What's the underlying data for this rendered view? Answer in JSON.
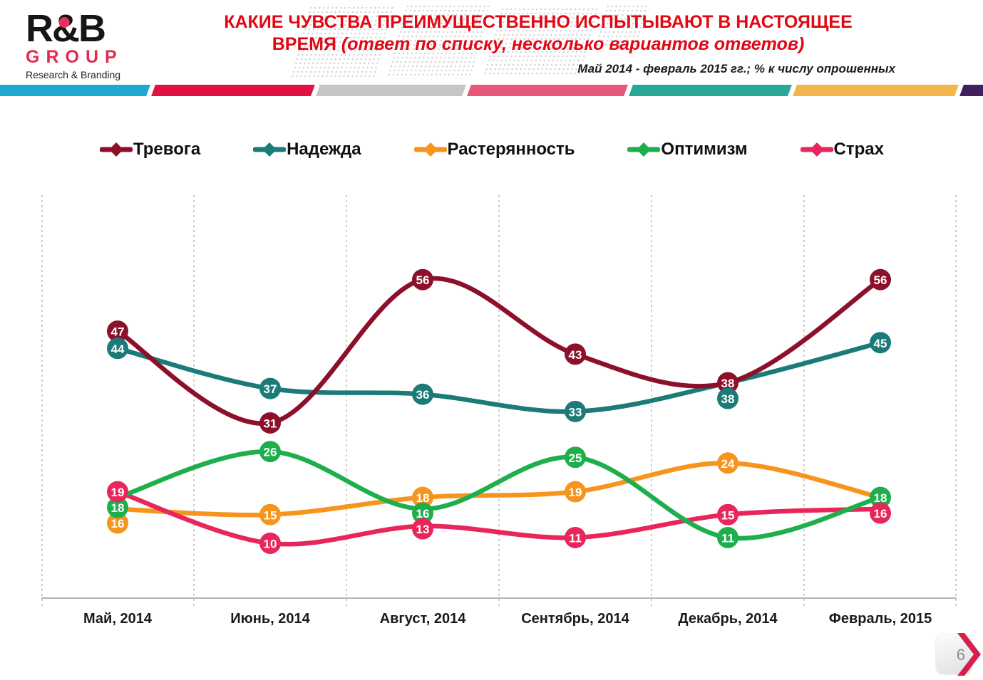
{
  "header": {
    "logo": {
      "brand": "R&B",
      "group": "GROUP",
      "tagline": "Research & Branding"
    },
    "title_line1": "КАКИЕ ЧУВСТВА ПРЕИМУЩЕСТВЕННО ИСПЫТЫВАЮТ В НАСТОЯЩЕЕ",
    "title_line2": "ВРЕМЯ ",
    "title_line2_note": "(ответ по списку, несколько вариантов ответов)",
    "subtitle": "Май 2014 - февраль 2015 гг.; % к числу опрошенных",
    "bar_colors": [
      "#20A8D3",
      "#E01245",
      "#C5C6C8",
      "#E75878",
      "#2BA795",
      "#F3B64A",
      "#41205F"
    ]
  },
  "chart_data": {
    "type": "line",
    "title": "Какие чувства преимущественно испытывают в настоящее время",
    "categories": [
      "Май, 2014",
      "Июнь, 2014",
      "Август, 2014",
      "Сентябрь, 2014",
      "Декабрь, 2014",
      "Февраль, 2015"
    ],
    "series": [
      {
        "name": "Тревога",
        "color": "#8C1029",
        "values": [
          47,
          31,
          56,
          43,
          38,
          56
        ]
      },
      {
        "name": "Надежда",
        "color": "#1C7B79",
        "values": [
          44,
          37,
          36,
          33,
          38,
          45
        ]
      },
      {
        "name": "Растерянность",
        "color": "#F7941D",
        "values": [
          16,
          15,
          18,
          19,
          24,
          18
        ],
        "labels": [
          "16",
          "15",
          "18",
          "19",
          "24",
          ""
        ]
      },
      {
        "name": "Оптимизм",
        "color": "#1FAE4C",
        "values": [
          18,
          26,
          16,
          25,
          11,
          18
        ]
      },
      {
        "name": "Страх",
        "color": "#E9265B",
        "values": [
          19,
          10,
          13,
          11,
          15,
          16
        ]
      }
    ],
    "ylim": [
      0,
      71
    ],
    "xlabel": "",
    "ylabel": "% к числу опрошенных",
    "grid": "vertical-dashed",
    "legend_position": "top",
    "value_labels": "circle-badges-on-points"
  },
  "footer": {
    "page_number": "6",
    "next_icon": "chevron-right"
  }
}
